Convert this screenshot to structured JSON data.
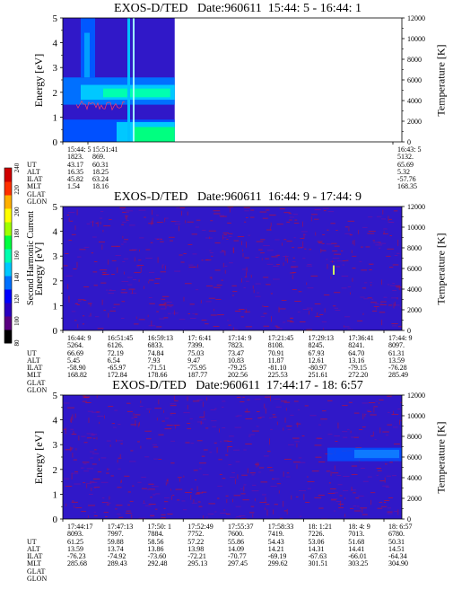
{
  "chart_data": {
    "type": "heatmap",
    "colorbar": {
      "label": "Second Harmonic Current",
      "ticks": [
        "80",
        "100",
        "120",
        "140",
        "160",
        "180",
        "200",
        "220",
        "240"
      ],
      "range": [
        80,
        240
      ],
      "colors": [
        "#000000",
        "#5a0080",
        "#2a00c0",
        "#0000ff",
        "#0070ff",
        "#00c8ff",
        "#00ffb0",
        "#00ff40",
        "#a0ff00",
        "#ffff00",
        "#ffb000",
        "#ff3000",
        "#d00000"
      ]
    },
    "ylabel_left": "Energy [eV]",
    "ylabel_right": "Temperature [K]",
    "y_left_ticks": [
      "0",
      "1",
      "2",
      "3",
      "4",
      "5"
    ],
    "y_left_range": [
      0,
      5
    ],
    "y_right_ticks": [
      "0",
      "2000",
      "4000",
      "6000",
      "8000",
      "10000",
      "12000"
    ],
    "y_right_range": [
      0,
      12000
    ],
    "eph_labels": [
      "UT",
      "ALT",
      "ILAT",
      "MLT",
      "GLAT",
      "GLON"
    ],
    "panels": [
      {
        "title": "EXOS-D/TED   Date:960611  15:44: 5 - 16:44: 1",
        "data_fraction": 0.33,
        "columns": [
          [
            "15:44: 5",
            "1823.",
            "43.17",
            "16.35",
            "45.82",
            "1.54"
          ],
          [
            "15:51:41",
            "869.",
            "60.31",
            "18.25",
            "63.24",
            "18.16"
          ],
          [
            "16:43: 5",
            "5132.",
            "65.69",
            "5.32",
            "-57.76",
            "168.35"
          ]
        ]
      },
      {
        "title": "EXOS-D/TED   Date:960611  16:44: 9 - 17:44: 9",
        "data_fraction": 1.0,
        "columns": [
          [
            "16:44: 9",
            "5264.",
            "66.69",
            "5.45",
            "-58.90",
            "168.82"
          ],
          [
            "16:51:45",
            "6126.",
            "72.19",
            "6.54",
            "-65.97",
            "172.84"
          ],
          [
            "16:59:13",
            "6833.",
            "74.84",
            "7.93",
            "-71.51",
            "178.66"
          ],
          [
            "17: 6:41",
            "7399.",
            "75.03",
            "9.47",
            "-75.95",
            "187.77"
          ],
          [
            "17:14: 9",
            "7823.",
            "73.47",
            "10.83",
            "-79.25",
            "202.56"
          ],
          [
            "17:21:45",
            "8108.",
            "70.91",
            "11.87",
            "-81.10",
            "225.53"
          ],
          [
            "17:29:13",
            "8245.",
            "67.93",
            "12.61",
            "-80.97",
            "251.61"
          ],
          [
            "17:36:41",
            "8241.",
            "64.70",
            "13.16",
            "-79.15",
            "272.20"
          ],
          [
            "17:44: 9",
            "8097.",
            "61.31",
            "13.59",
            "-76.28",
            "285.49"
          ]
        ]
      },
      {
        "title": "EXOS-D/TED   Date:960611  17:44:17 - 18: 6:57",
        "data_fraction": 1.0,
        "columns": [
          [
            "17:44:17",
            "8093.",
            "61.25",
            "13.59",
            "-76.23",
            "285.68"
          ],
          [
            "17:47:13",
            "7997.",
            "59.88",
            "13.74",
            "-74.92",
            "289.43"
          ],
          [
            "17:50: 1",
            "7884.",
            "58.56",
            "13.86",
            "-73.60",
            "292.48"
          ],
          [
            "17:52:49",
            "7752.",
            "57.22",
            "13.98",
            "-72.21",
            "295.13"
          ],
          [
            "17:55:37",
            "7600.",
            "55.86",
            "14.09",
            "-70.77",
            "297.45"
          ],
          [
            "17:58:33",
            "7419.",
            "54.43",
            "14.21",
            "-69.19",
            "299.62"
          ],
          [
            "18: 1:21",
            "7226.",
            "53.06",
            "14.31",
            "-67.63",
            "301.51"
          ],
          [
            "18: 4: 9",
            "7013.",
            "51.68",
            "14.41",
            "-66.01",
            "303.25"
          ],
          [
            "18: 6:57",
            "6780.",
            "50.31",
            "14.51",
            "-64.34",
            "304.90"
          ]
        ]
      }
    ]
  }
}
